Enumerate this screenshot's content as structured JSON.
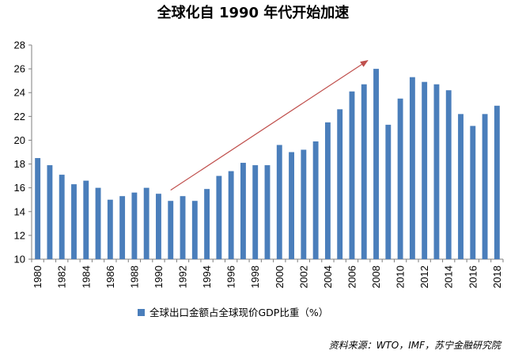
{
  "chart_data": {
    "type": "bar",
    "title": "全球化自 1990 年代开始加速",
    "categories": [
      "1980",
      "1981",
      "1982",
      "1983",
      "1984",
      "1985",
      "1986",
      "1987",
      "1988",
      "1989",
      "1990",
      "1991",
      "1992",
      "1993",
      "1994",
      "1995",
      "1996",
      "1997",
      "1998",
      "1999",
      "2000",
      "2001",
      "2002",
      "2003",
      "2004",
      "2005",
      "2006",
      "2007",
      "2008",
      "2009",
      "2010",
      "2011",
      "2012",
      "2013",
      "2014",
      "2015",
      "2016",
      "2017",
      "2018"
    ],
    "tick_labels_x": [
      "1980",
      "1982",
      "1984",
      "1986",
      "1988",
      "1990",
      "1992",
      "1994",
      "1996",
      "1998",
      "2000",
      "2002",
      "2004",
      "2006",
      "2008",
      "2010",
      "2012",
      "2014",
      "2016",
      "2018"
    ],
    "series": [
      {
        "name": "全球出口金额占全球现价GDP比重（%）",
        "color": "#4a7ebb",
        "values": [
          18.5,
          17.9,
          17.1,
          16.3,
          16.6,
          16.0,
          15.0,
          15.3,
          15.6,
          16.0,
          15.5,
          14.9,
          15.3,
          14.9,
          15.9,
          17.0,
          17.4,
          18.1,
          17.9,
          17.9,
          19.6,
          19.0,
          19.2,
          19.9,
          21.5,
          22.6,
          24.1,
          24.7,
          26.0,
          21.3,
          23.5,
          25.3,
          24.9,
          24.7,
          24.2,
          22.2,
          21.2,
          22.2,
          22.9
        ]
      }
    ],
    "ylim": [
      10,
      28
    ],
    "yticks": [
      "10",
      "12",
      "14",
      "16",
      "18",
      "20",
      "22",
      "24",
      "26",
      "28"
    ],
    "xlabel": "",
    "ylabel": "",
    "legend_position": "bottom",
    "annotation": {
      "type": "arrow",
      "from_category": "1991",
      "from_value": 15.8,
      "to_category": "2007",
      "to_value": 26.7,
      "color": "#c0504d"
    },
    "source": "资料来源：WTO，IMF，苏宁金融研究院"
  }
}
